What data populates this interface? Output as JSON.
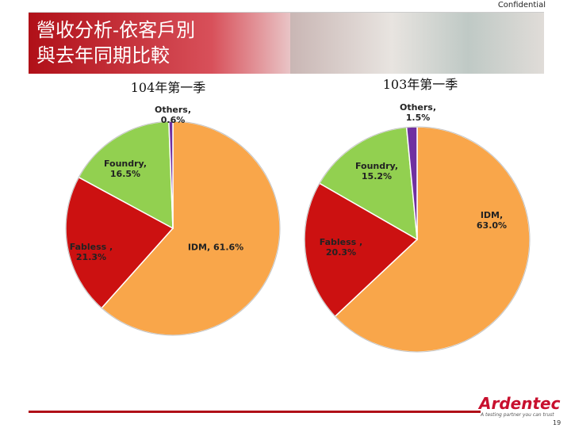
{
  "page": {
    "confidential": "Confidential",
    "title_lines": [
      "營收分析-依客戶別",
      "與去年同期比較"
    ],
    "logo": "Ardentec",
    "tagline": "A testing partner you can trust",
    "page_number": "19"
  },
  "chart_data": [
    {
      "type": "pie",
      "title": "104年第一季",
      "categories": [
        "IDM",
        "Fabless",
        "Foundry",
        "Others"
      ],
      "values": [
        61.6,
        21.3,
        16.5,
        0.6
      ],
      "value_labels": [
        "IDM, 61.6%",
        "Fabless , 21.3%",
        "Foundry, 16.5%",
        "Others, 0.6%"
      ],
      "colors": [
        "#f9a64a",
        "#cc1111",
        "#92d050",
        "#7030a0"
      ]
    },
    {
      "type": "pie",
      "title": "103年第一季",
      "categories": [
        "IDM",
        "Fabless",
        "Foundry",
        "Others"
      ],
      "values": [
        63.0,
        20.3,
        15.2,
        1.5
      ],
      "value_labels": [
        "IDM, 63.0%",
        "Fabless , 20.3%",
        "Foundry, 15.2%",
        "Others, 1.5%"
      ],
      "colors": [
        "#f9a64a",
        "#cc1111",
        "#92d050",
        "#7030a0"
      ]
    }
  ]
}
